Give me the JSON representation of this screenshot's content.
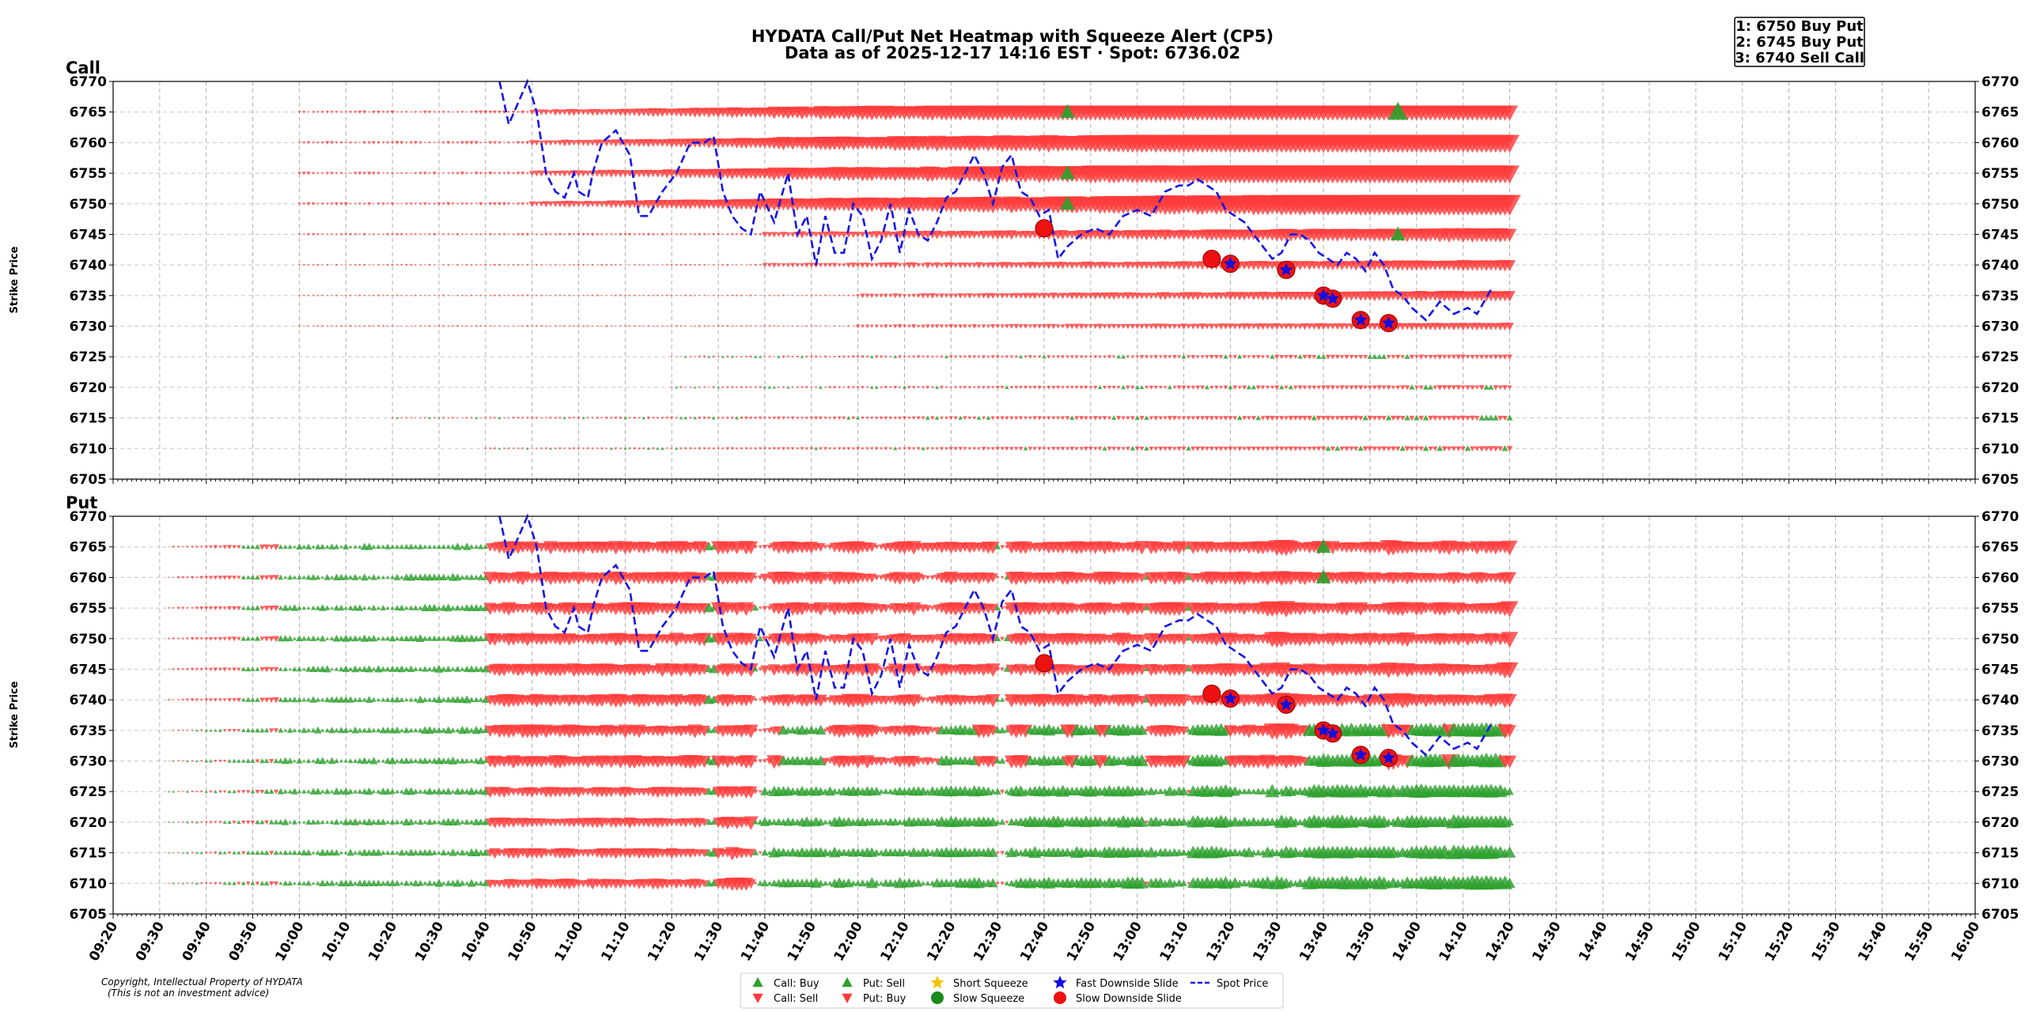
{
  "chart_data": {
    "type": "scatter",
    "title_line1": "HYDATA Call/Put Net Heatmap with Squeeze Alert (CP5)",
    "title_line2": "Data as of 2025-12-17 14:16 EST · Spot: 6736.02",
    "top_signals": [
      "1: 6750 Buy Put",
      "2: 6745 Buy Put",
      "3: 6740 Sell Call"
    ],
    "ylabel": "Strike Price",
    "ylim": [
      6705,
      6770
    ],
    "yticks": [
      6705,
      6710,
      6715,
      6720,
      6725,
      6730,
      6735,
      6740,
      6745,
      6750,
      6755,
      6760,
      6765,
      6770
    ],
    "strikes": [
      6710,
      6715,
      6720,
      6725,
      6730,
      6735,
      6740,
      6745,
      6750,
      6755,
      6760,
      6765
    ],
    "xlim_minutes": [
      560,
      960
    ],
    "xtick_labels": [
      "09:20",
      "09:30",
      "09:40",
      "09:50",
      "10:00",
      "10:10",
      "10:20",
      "10:30",
      "10:40",
      "10:50",
      "11:00",
      "11:10",
      "11:20",
      "11:30",
      "11:40",
      "11:50",
      "12:00",
      "12:10",
      "12:20",
      "12:30",
      "12:40",
      "12:50",
      "13:00",
      "13:10",
      "13:20",
      "13:30",
      "13:40",
      "13:50",
      "14:00",
      "14:10",
      "14:20",
      "14:30",
      "14:40",
      "14:50",
      "15:00",
      "15:10",
      "15:20",
      "15:30",
      "15:40",
      "15:50",
      "16:00"
    ],
    "panels": [
      {
        "name": "Call"
      },
      {
        "name": "Put"
      }
    ],
    "spot_price_series": {
      "times": [
        "10:43",
        "10:45",
        "10:49",
        "10:51",
        "10:53",
        "10:55",
        "10:57",
        "10:59",
        "11:00",
        "11:02",
        "11:03",
        "11:05",
        "11:08",
        "11:11",
        "11:13",
        "11:15",
        "11:18",
        "11:21",
        "11:24",
        "11:27",
        "11:29",
        "11:31",
        "11:33",
        "11:35",
        "11:37",
        "11:39",
        "11:42",
        "11:45",
        "11:47",
        "11:49",
        "11:51",
        "11:53",
        "11:55",
        "11:57",
        "11:59",
        "12:01",
        "12:03",
        "12:05",
        "12:07",
        "12:09",
        "12:11",
        "12:13",
        "12:15",
        "12:17",
        "12:19",
        "12:21",
        "12:23",
        "12:25",
        "12:27",
        "12:29",
        "12:31",
        "12:33",
        "12:35",
        "12:37",
        "12:39",
        "12:41",
        "12:43",
        "12:45",
        "12:48",
        "12:51",
        "12:54",
        "12:57",
        "13:00",
        "13:03",
        "13:06",
        "13:09",
        "13:11",
        "13:13",
        "13:15",
        "13:17",
        "13:19",
        "13:21",
        "13:23",
        "13:25",
        "13:27",
        "13:29",
        "13:31",
        "13:33",
        "13:35",
        "13:37",
        "13:39",
        "13:41",
        "13:43",
        "13:45",
        "13:47",
        "13:49",
        "13:51",
        "13:53",
        "13:55",
        "13:57",
        "13:59",
        "14:02",
        "14:05",
        "14:08",
        "14:11",
        "14:13",
        "14:16"
      ],
      "values": [
        6770,
        6763,
        6770,
        6765,
        6755,
        6752,
        6751,
        6755,
        6752,
        6751,
        6755,
        6760,
        6762,
        6758,
        6748,
        6748,
        6752,
        6755,
        6760,
        6760,
        6761,
        6752,
        6748,
        6746,
        6745,
        6752,
        6747,
        6755,
        6745,
        6748,
        6740,
        6748,
        6742,
        6742,
        6750,
        6748,
        6741,
        6744,
        6750,
        6742,
        6749,
        6745,
        6744,
        6747,
        6751,
        6752,
        6755,
        6758,
        6755,
        6750,
        6756,
        6758,
        6752,
        6751,
        6748,
        6749,
        6741,
        6743,
        6745,
        6746,
        6745,
        6748,
        6749,
        6748,
        6752,
        6753,
        6753,
        6754,
        6753,
        6752,
        6749,
        6748,
        6747,
        6745,
        6743,
        6741,
        6742,
        6745,
        6745,
        6744,
        6742,
        6741,
        6740,
        6742,
        6741,
        6739,
        6742,
        6740,
        6736,
        6735,
        6733,
        6731,
        6734,
        6732,
        6733,
        6732,
        6736
      ]
    },
    "slow_downside_slide": [
      {
        "time": "12:40",
        "strike": 6746
      },
      {
        "time": "13:16",
        "strike": 6741
      },
      {
        "time": "13:20",
        "strike": 6740.2
      },
      {
        "time": "13:32",
        "strike": 6739.2
      },
      {
        "time": "13:40",
        "strike": 6735
      },
      {
        "time": "13:42",
        "strike": 6734.5
      },
      {
        "time": "13:48",
        "strike": 6731
      },
      {
        "time": "13:54",
        "strike": 6730.5
      }
    ],
    "fast_downside_slide": [
      {
        "time": "13:20",
        "strike": 6740.2
      },
      {
        "time": "13:32",
        "strike": 6739.2
      },
      {
        "time": "13:40",
        "strike": 6735
      },
      {
        "time": "13:42",
        "strike": 6734.5
      },
      {
        "time": "13:48",
        "strike": 6731
      },
      {
        "time": "13:54",
        "strike": 6730.5
      }
    ],
    "legend": [
      {
        "label": "Call: Buy",
        "marker": "triangle-up",
        "color": "#2ca02c"
      },
      {
        "label": "Call: Sell",
        "marker": "triangle-down",
        "color": "#ff3b3b"
      },
      {
        "label": "Put: Sell",
        "marker": "triangle-up",
        "color": "#2ca02c"
      },
      {
        "label": "Put: Buy",
        "marker": "triangle-down",
        "color": "#ff3b3b"
      },
      {
        "label": "Short Squeeze",
        "marker": "star",
        "color": "#f2c200"
      },
      {
        "label": "Slow Squeeze",
        "marker": "circle",
        "color": "#1a8a1a"
      },
      {
        "label": "Fast Downside Slide",
        "marker": "star",
        "color": "#1010e0"
      },
      {
        "label": "Slow Downside Slide",
        "marker": "circle",
        "color": "#ee1111"
      },
      {
        "label": "Spot Price",
        "marker": "dashed-line",
        "color": "#1515e6"
      }
    ],
    "copyright_line1": "Copyright, Intellectual Property of HYDATA",
    "copyright_line2": "(This is not an investment advice)",
    "colors": {
      "buy_green": "#2ca02c",
      "sell_red": "#ff3b3b",
      "spot_blue": "#1515e6",
      "alert_red": "#ee1111",
      "star_blue": "#1010e0"
    }
  }
}
